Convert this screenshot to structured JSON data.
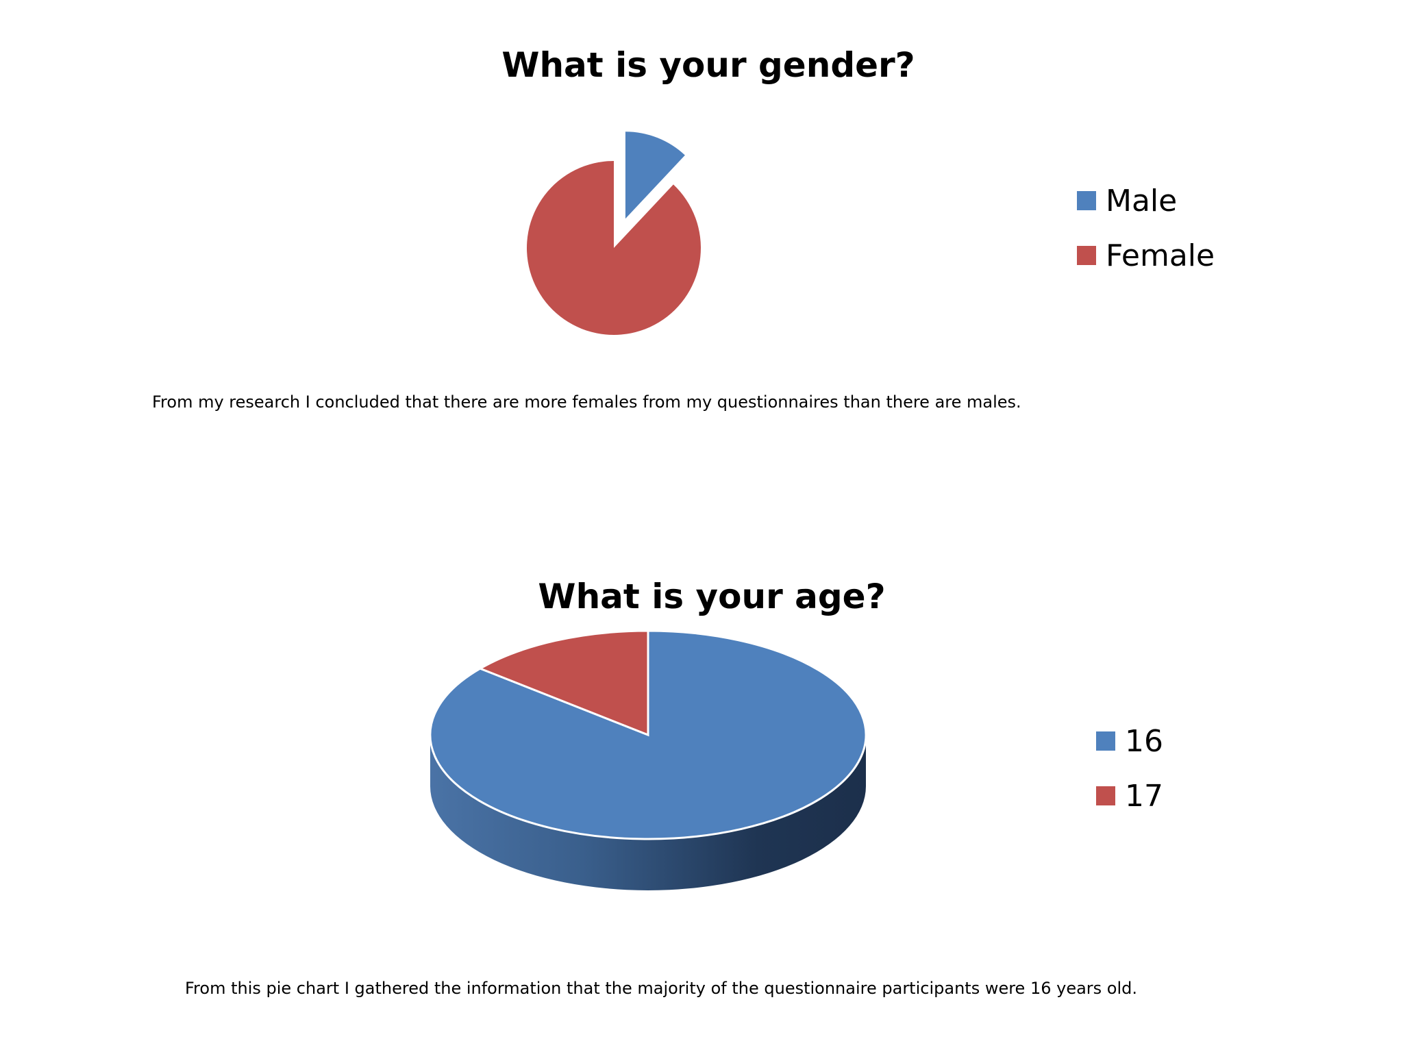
{
  "colors": {
    "blue": "#4f81bd",
    "red": "#c0504d"
  },
  "chart_data": [
    {
      "type": "pie",
      "title": "What is your gender?",
      "categories": [
        "Male",
        "Female"
      ],
      "values": [
        12,
        88
      ],
      "colors": [
        "#4f81bd",
        "#c0504d"
      ],
      "exploded": [
        "Male"
      ],
      "legend_position": "right"
    },
    {
      "type": "pie",
      "title": "What is your age?",
      "style": "3d",
      "categories": [
        "16",
        "17"
      ],
      "values": [
        86,
        14
      ],
      "colors": [
        "#4f81bd",
        "#c0504d"
      ],
      "legend_position": "right"
    }
  ],
  "notes": {
    "gender": "From my research I concluded that there are more females from my questionnaires than there are males.",
    "age": "From this pie chart I gathered the information that the majority of the questionnaire participants were 16 years old."
  }
}
